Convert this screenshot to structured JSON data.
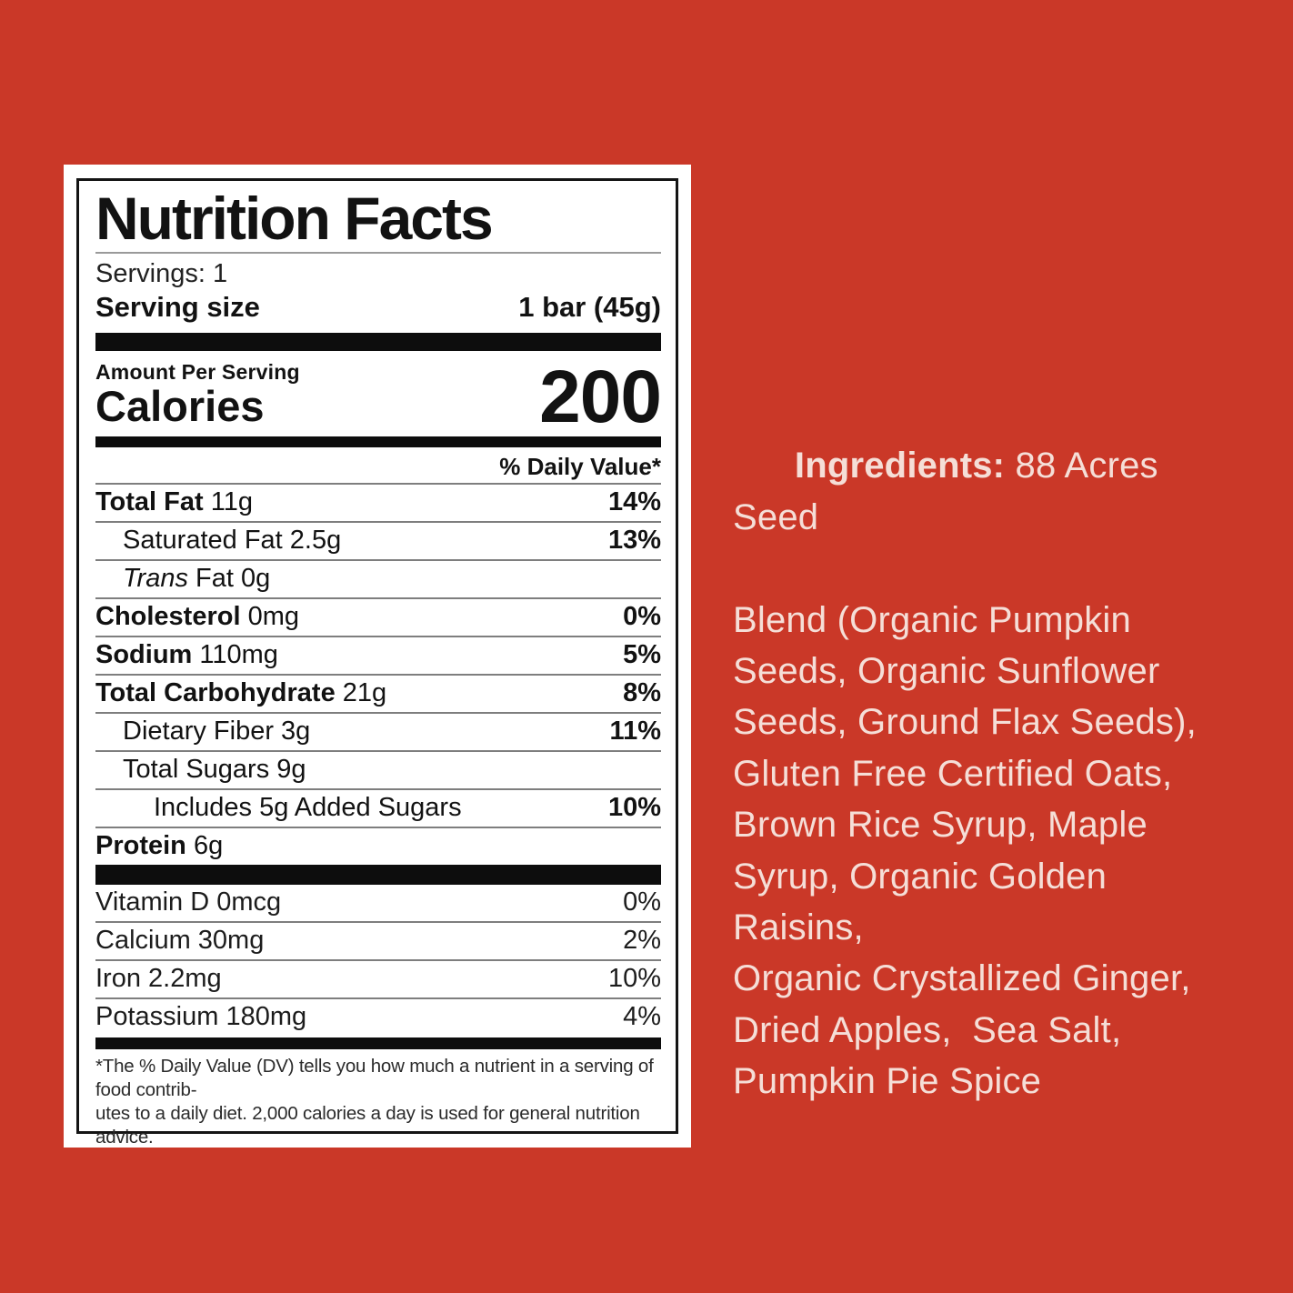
{
  "page": {
    "background_color": "#ca3828",
    "panel_color": "#ffffff",
    "ingredients_text_color": "#f5ded7"
  },
  "nutrition_label": {
    "title": "Nutrition Facts",
    "servings": "Servings: 1",
    "serving_size": {
      "label": "Serving size",
      "value": "1 bar (45g)"
    },
    "amount_per_serving": "Amount Per Serving",
    "calories": {
      "label": "Calories",
      "value": "200"
    },
    "daily_value_header": "% Daily Value*",
    "nutrients": [
      {
        "bold": "Total Fat",
        "rest": " 11g",
        "dv": "14%",
        "dvBold": true,
        "indent": 0
      },
      {
        "rest": "Saturated Fat 2.5g",
        "dv": "13%",
        "dvBold": true,
        "indent": 1
      },
      {
        "italic": "Trans",
        "rest": " Fat 0g",
        "dv": "",
        "indent": 1
      },
      {
        "bold": "Cholesterol",
        "rest": " 0mg",
        "dv": "0%",
        "dvBold": true,
        "indent": 0
      },
      {
        "bold": "Sodium",
        "rest": " 110mg",
        "dv": "5%",
        "dvBold": true,
        "indent": 0
      },
      {
        "bold": "Total Carbohydrate",
        "rest": " 21g",
        "dv": "8%",
        "dvBold": true,
        "indent": 0
      },
      {
        "rest": "Dietary Fiber 3g",
        "dv": "11%",
        "dvBold": true,
        "indent": 1
      },
      {
        "rest": "Total Sugars 9g",
        "dv": "",
        "indent": 1
      },
      {
        "rest": "Includes 5g Added Sugars",
        "dv": "10%",
        "dvBold": true,
        "indent": 2
      },
      {
        "bold": "Protein",
        "rest": " 6g",
        "dv": "",
        "indent": 0
      }
    ],
    "micronutrients": [
      {
        "rest": "Vitamin D 0mcg",
        "dv": "0%",
        "dvBold": false
      },
      {
        "rest": "Calcium 30mg",
        "dv": "2%",
        "dvBold": false
      },
      {
        "rest": "Iron 2.2mg",
        "dv": "10%",
        "dvBold": false
      },
      {
        "rest": "Potassium 180mg",
        "dv": "4%",
        "dvBold": false
      }
    ],
    "footnote_lines": [
      "*The % Daily Value (DV) tells you how much a nutrient in a serving of food contrib-",
      "utes to a daily diet. 2,000 calories a day is used for general nutrition advice."
    ]
  },
  "ingredients": {
    "heading": "Ingredients:",
    "first_line_rest": " 88 Acres Seed",
    "lines": [
      "Blend (Organic Pumpkin",
      "Seeds, Organic Sunflower",
      "Seeds, Ground Flax Seeds),",
      "Gluten Free Certified Oats,",
      "Brown Rice Syrup, Maple",
      "Syrup, Organic Golden Raisins,",
      "Organic Crystallized Ginger,",
      "Dried Apples,  Sea Salt,",
      "Pumpkin Pie Spice"
    ],
    "full_text": "Ingredients: 88 Acres Seed Blend (Organic Pumpkin Seeds, Organic Sunflower Seeds, Ground Flax Seeds), Gluten Free Certified Oats, Brown Rice Syrup, Maple Syrup, Organic Golden Raisins, Organic Crystallized Ginger, Dried Apples, Sea Salt, Pumpkin Pie Spice"
  }
}
